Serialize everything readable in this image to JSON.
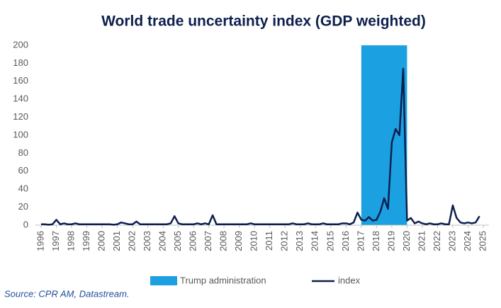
{
  "chart_data": {
    "type": "line",
    "title": "World trade uncertainty index (GDP weighted)",
    "source": "Source: CPR AM, Datastream.",
    "band": {
      "name": "Trump administration",
      "color": "#1ba1e2",
      "x": [
        2017,
        2020
      ]
    },
    "x": [
      1996,
      1996.25,
      1996.5,
      1996.75,
      1997,
      1997.25,
      1997.5,
      1997.75,
      1998,
      1998.25,
      1998.5,
      1998.75,
      1999,
      1999.25,
      1999.5,
      1999.75,
      2000,
      2000.25,
      2000.5,
      2000.75,
      2001,
      2001.25,
      2001.5,
      2001.75,
      2002,
      2002.25,
      2002.5,
      2002.75,
      2003,
      2003.25,
      2003.5,
      2003.75,
      2004,
      2004.25,
      2004.5,
      2004.75,
      2005,
      2005.25,
      2005.5,
      2005.75,
      2006,
      2006.25,
      2006.5,
      2006.75,
      2007,
      2007.25,
      2007.5,
      2007.75,
      2008,
      2008.25,
      2008.5,
      2008.75,
      2009,
      2009.25,
      2009.5,
      2009.75,
      2010,
      2010.25,
      2010.5,
      2010.75,
      2011,
      2011.25,
      2011.5,
      2011.75,
      2012,
      2012.25,
      2012.5,
      2012.75,
      2013,
      2013.25,
      2013.5,
      2013.75,
      2014,
      2014.25,
      2014.5,
      2014.75,
      2015,
      2015.25,
      2015.5,
      2015.75,
      2016,
      2016.25,
      2016.5,
      2016.75,
      2017,
      2017.25,
      2017.5,
      2017.75,
      2018,
      2018.25,
      2018.5,
      2018.75,
      2019,
      2019.25,
      2019.5,
      2019.75,
      2020,
      2020.25,
      2020.5,
      2020.75,
      2021,
      2021.25,
      2021.5,
      2021.75,
      2022,
      2022.25,
      2022.5,
      2022.75,
      2023,
      2023.25,
      2023.5,
      2023.75,
      2024,
      2024.25,
      2024.5,
      2024.75
    ],
    "series": [
      {
        "name": "index",
        "color": "#0d1f4d",
        "values": [
          1,
          1,
          0.5,
          1,
          6,
          1,
          2,
          1,
          1,
          2,
          1,
          1,
          1,
          1,
          1,
          1,
          1,
          1,
          1,
          0.5,
          1,
          3,
          2,
          1,
          1,
          4,
          1,
          1,
          1,
          1,
          1,
          1,
          1,
          1,
          2,
          10,
          2,
          1,
          1,
          1,
          1,
          2,
          1,
          2,
          1,
          11,
          1,
          1,
          1,
          1,
          1,
          1,
          1,
          1,
          1,
          2,
          1,
          1,
          1,
          1,
          1,
          1,
          1,
          1,
          1,
          1,
          2,
          1,
          1,
          1,
          2,
          1,
          1,
          1,
          2,
          1,
          1,
          1,
          1,
          2,
          2,
          1,
          3,
          14,
          6,
          5,
          9,
          5,
          6,
          15,
          30,
          18,
          92,
          107,
          100,
          174,
          5,
          8,
          2,
          4,
          2,
          1,
          2,
          1,
          1,
          2,
          1,
          1,
          22,
          8,
          3,
          2,
          3,
          2,
          3,
          10
        ]
      }
    ],
    "xlim": [
      1996,
      2025
    ],
    "xticks": [
      1996,
      1997,
      1998,
      1999,
      2000,
      2001,
      2002,
      2003,
      2004,
      2005,
      2006,
      2007,
      2008,
      2009,
      2010,
      2011,
      2012,
      2013,
      2014,
      2015,
      2016,
      2017,
      2018,
      2019,
      2020,
      2021,
      2022,
      2023,
      2024,
      2025
    ],
    "ylim": [
      0,
      200
    ],
    "yticks": [
      0,
      20,
      40,
      60,
      80,
      100,
      120,
      140,
      160,
      180,
      200
    ],
    "grid": false
  }
}
